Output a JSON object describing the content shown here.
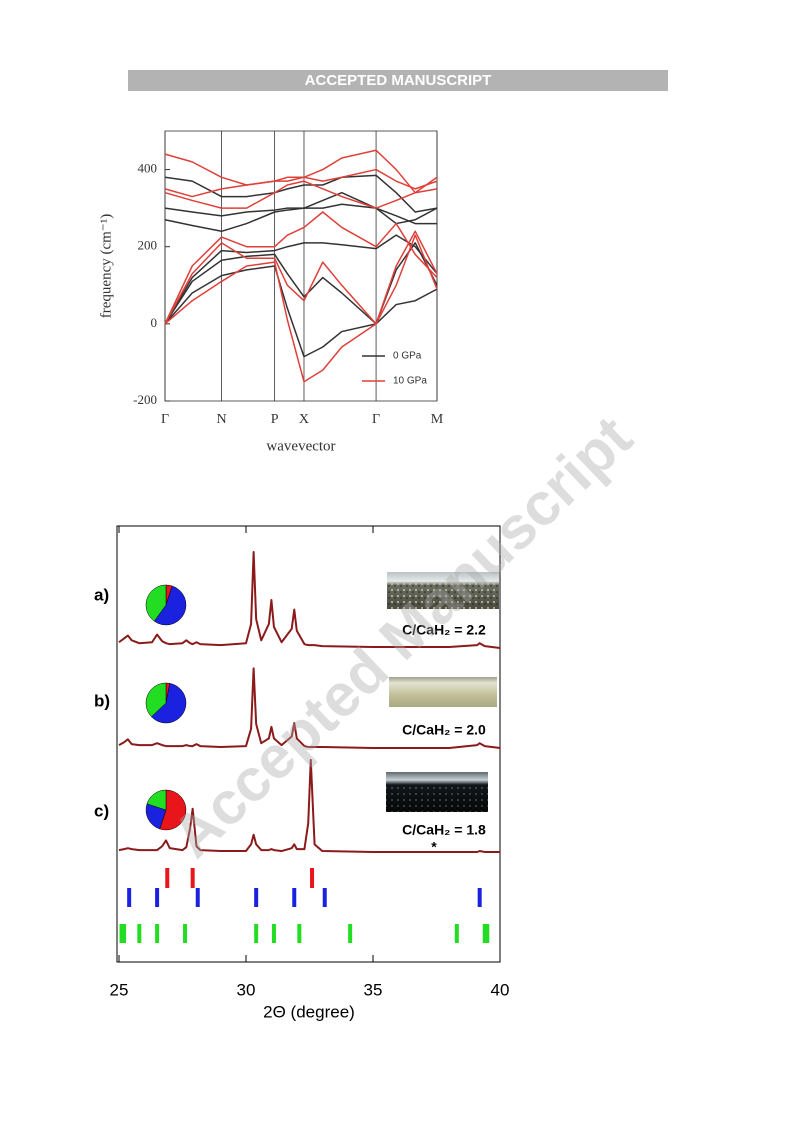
{
  "header": {
    "title": "ACCEPTED MANUSCRIPT"
  },
  "watermark": "Accepted Manuscript",
  "chart_data": [
    {
      "type": "line",
      "ylabel": "frequency (cm⁻¹)",
      "xlabel": "wavevector",
      "x": [
        0,
        0.1,
        0.208,
        0.3,
        0.403,
        0.45,
        0.511,
        0.58,
        0.65,
        0.776,
        0.85,
        0.92,
        1.0
      ],
      "xlim": [
        0,
        1
      ],
      "xticks": [
        {
          "value": 0,
          "label": "Γ"
        },
        {
          "value": 0.208,
          "label": "N"
        },
        {
          "value": 0.403,
          "label": "P"
        },
        {
          "value": 0.511,
          "label": "X"
        },
        {
          "value": 0.776,
          "label": "Γ"
        },
        {
          "value": 1.0,
          "label": "M"
        }
      ],
      "ylim": [
        -200,
        500
      ],
      "yticks": [
        -200,
        0,
        200,
        400
      ],
      "grid": true,
      "legend": "lower-right",
      "series": [
        {
          "name": "0 GPa",
          "color": "#333333",
          "lines": [
            [
              0,
              80,
              125,
              140,
              150,
              40,
              -85,
              -60,
              -20,
              0,
              50,
              60,
              90
            ],
            [
              0,
              110,
              165,
              175,
              180,
              130,
              70,
              120,
              80,
              0,
              140,
              210,
              100
            ],
            [
              0,
              120,
              190,
              185,
              190,
              200,
              210,
              210,
              205,
              195,
              230,
              200,
              130
            ],
            [
              270,
              255,
              240,
              260,
              290,
              295,
              300,
              300,
              310,
              300,
              280,
              260,
              260
            ],
            [
              300,
              290,
              280,
              290,
              295,
              300,
              300,
              320,
              340,
              300,
              260,
              270,
              300
            ],
            [
              380,
              370,
              330,
              330,
              340,
              350,
              360,
              360,
              380,
              385,
              340,
              290,
              300
            ]
          ]
        },
        {
          "name": "10 GPa",
          "color": "#e0403a",
          "lines": [
            [
              0,
              60,
              110,
              150,
              160,
              10,
              -150,
              -120,
              -60,
              0,
              100,
              230,
              90
            ],
            [
              0,
              130,
              210,
              170,
              170,
              100,
              60,
              160,
              100,
              0,
              150,
              240,
              130
            ],
            [
              0,
              150,
              225,
              200,
              200,
              230,
              250,
              290,
              250,
              200,
              260,
              180,
              120
            ],
            [
              340,
              320,
              300,
              300,
              340,
              360,
              370,
              350,
              330,
              300,
              320,
              340,
              350
            ],
            [
              350,
              330,
              350,
              360,
              370,
              380,
              380,
              370,
              380,
              400,
              370,
              350,
              370
            ],
            [
              440,
              420,
              380,
              360,
              370,
              370,
              380,
              400,
              430,
              450,
              400,
              340,
              380
            ]
          ]
        }
      ]
    },
    {
      "type": "xrd",
      "xlabel": "2Θ (degree)",
      "xlim": [
        25,
        40
      ],
      "xticks": [
        25,
        30,
        35,
        40
      ],
      "x": [
        25.0,
        25.2,
        25.35,
        25.5,
        25.8,
        26.3,
        26.5,
        26.7,
        26.85,
        27.0,
        27.5,
        27.65,
        27.8,
        27.9,
        28.05,
        28.2,
        29.0,
        30.0,
        30.2,
        30.3,
        30.4,
        30.6,
        30.9,
        31.0,
        31.1,
        31.4,
        31.8,
        31.9,
        32.0,
        32.3,
        32.45,
        32.55,
        32.7,
        33.0,
        35.0,
        38.0,
        39.1,
        39.2,
        39.4,
        40.0
      ],
      "color": "#8b1a1a",
      "series": [
        {
          "name": "a)",
          "annotation": "C/CaH₂ = 2.2",
          "pie": [
            5,
            55,
            40
          ],
          "values": [
            6,
            10,
            13,
            8,
            5,
            6,
            14,
            7,
            5,
            4,
            5,
            8,
            5,
            4,
            6,
            4,
            3,
            5,
            25,
            100,
            30,
            8,
            25,
            50,
            22,
            6,
            20,
            40,
            18,
            4,
            3,
            3,
            3,
            2,
            1,
            1,
            3,
            5,
            2,
            0
          ]
        },
        {
          "name": "b)",
          "annotation": "C/CaH₂ = 2.0",
          "pie": [
            3,
            60,
            37
          ],
          "values": [
            3,
            6,
            9,
            4,
            3,
            3,
            5,
            3,
            2,
            2,
            2,
            3,
            2,
            2,
            4,
            2,
            1,
            2,
            20,
            83,
            25,
            5,
            10,
            22,
            10,
            3,
            12,
            26,
            10,
            2,
            1,
            1,
            1,
            1,
            0,
            0,
            3,
            5,
            2,
            0
          ]
        },
        {
          "name": "c)",
          "annotation": "C/CaH₂ = 1.8",
          "marker": "*",
          "pie": [
            55,
            25,
            20
          ],
          "values": [
            2,
            3,
            4,
            3,
            2,
            2,
            2,
            6,
            12,
            4,
            2,
            5,
            25,
            45,
            6,
            2,
            1,
            1,
            8,
            18,
            8,
            2,
            2,
            3,
            2,
            1,
            4,
            8,
            3,
            3,
            30,
            96,
            8,
            1,
            0,
            0,
            0,
            1,
            0,
            0
          ]
        }
      ],
      "phases": [
        {
          "color": "#e8151b",
          "positions": [
            26.9,
            27.9,
            32.6
          ]
        },
        {
          "color": "#1a22e0",
          "positions": [
            25.4,
            26.5,
            28.1,
            30.4,
            31.9,
            33.1,
            39.2
          ]
        },
        {
          "color": "#22dd22",
          "positions": [
            25.1,
            25.2,
            25.8,
            26.5,
            27.6,
            30.4,
            31.1,
            32.1,
            34.1,
            38.3,
            39.4,
            39.5
          ]
        }
      ]
    }
  ]
}
